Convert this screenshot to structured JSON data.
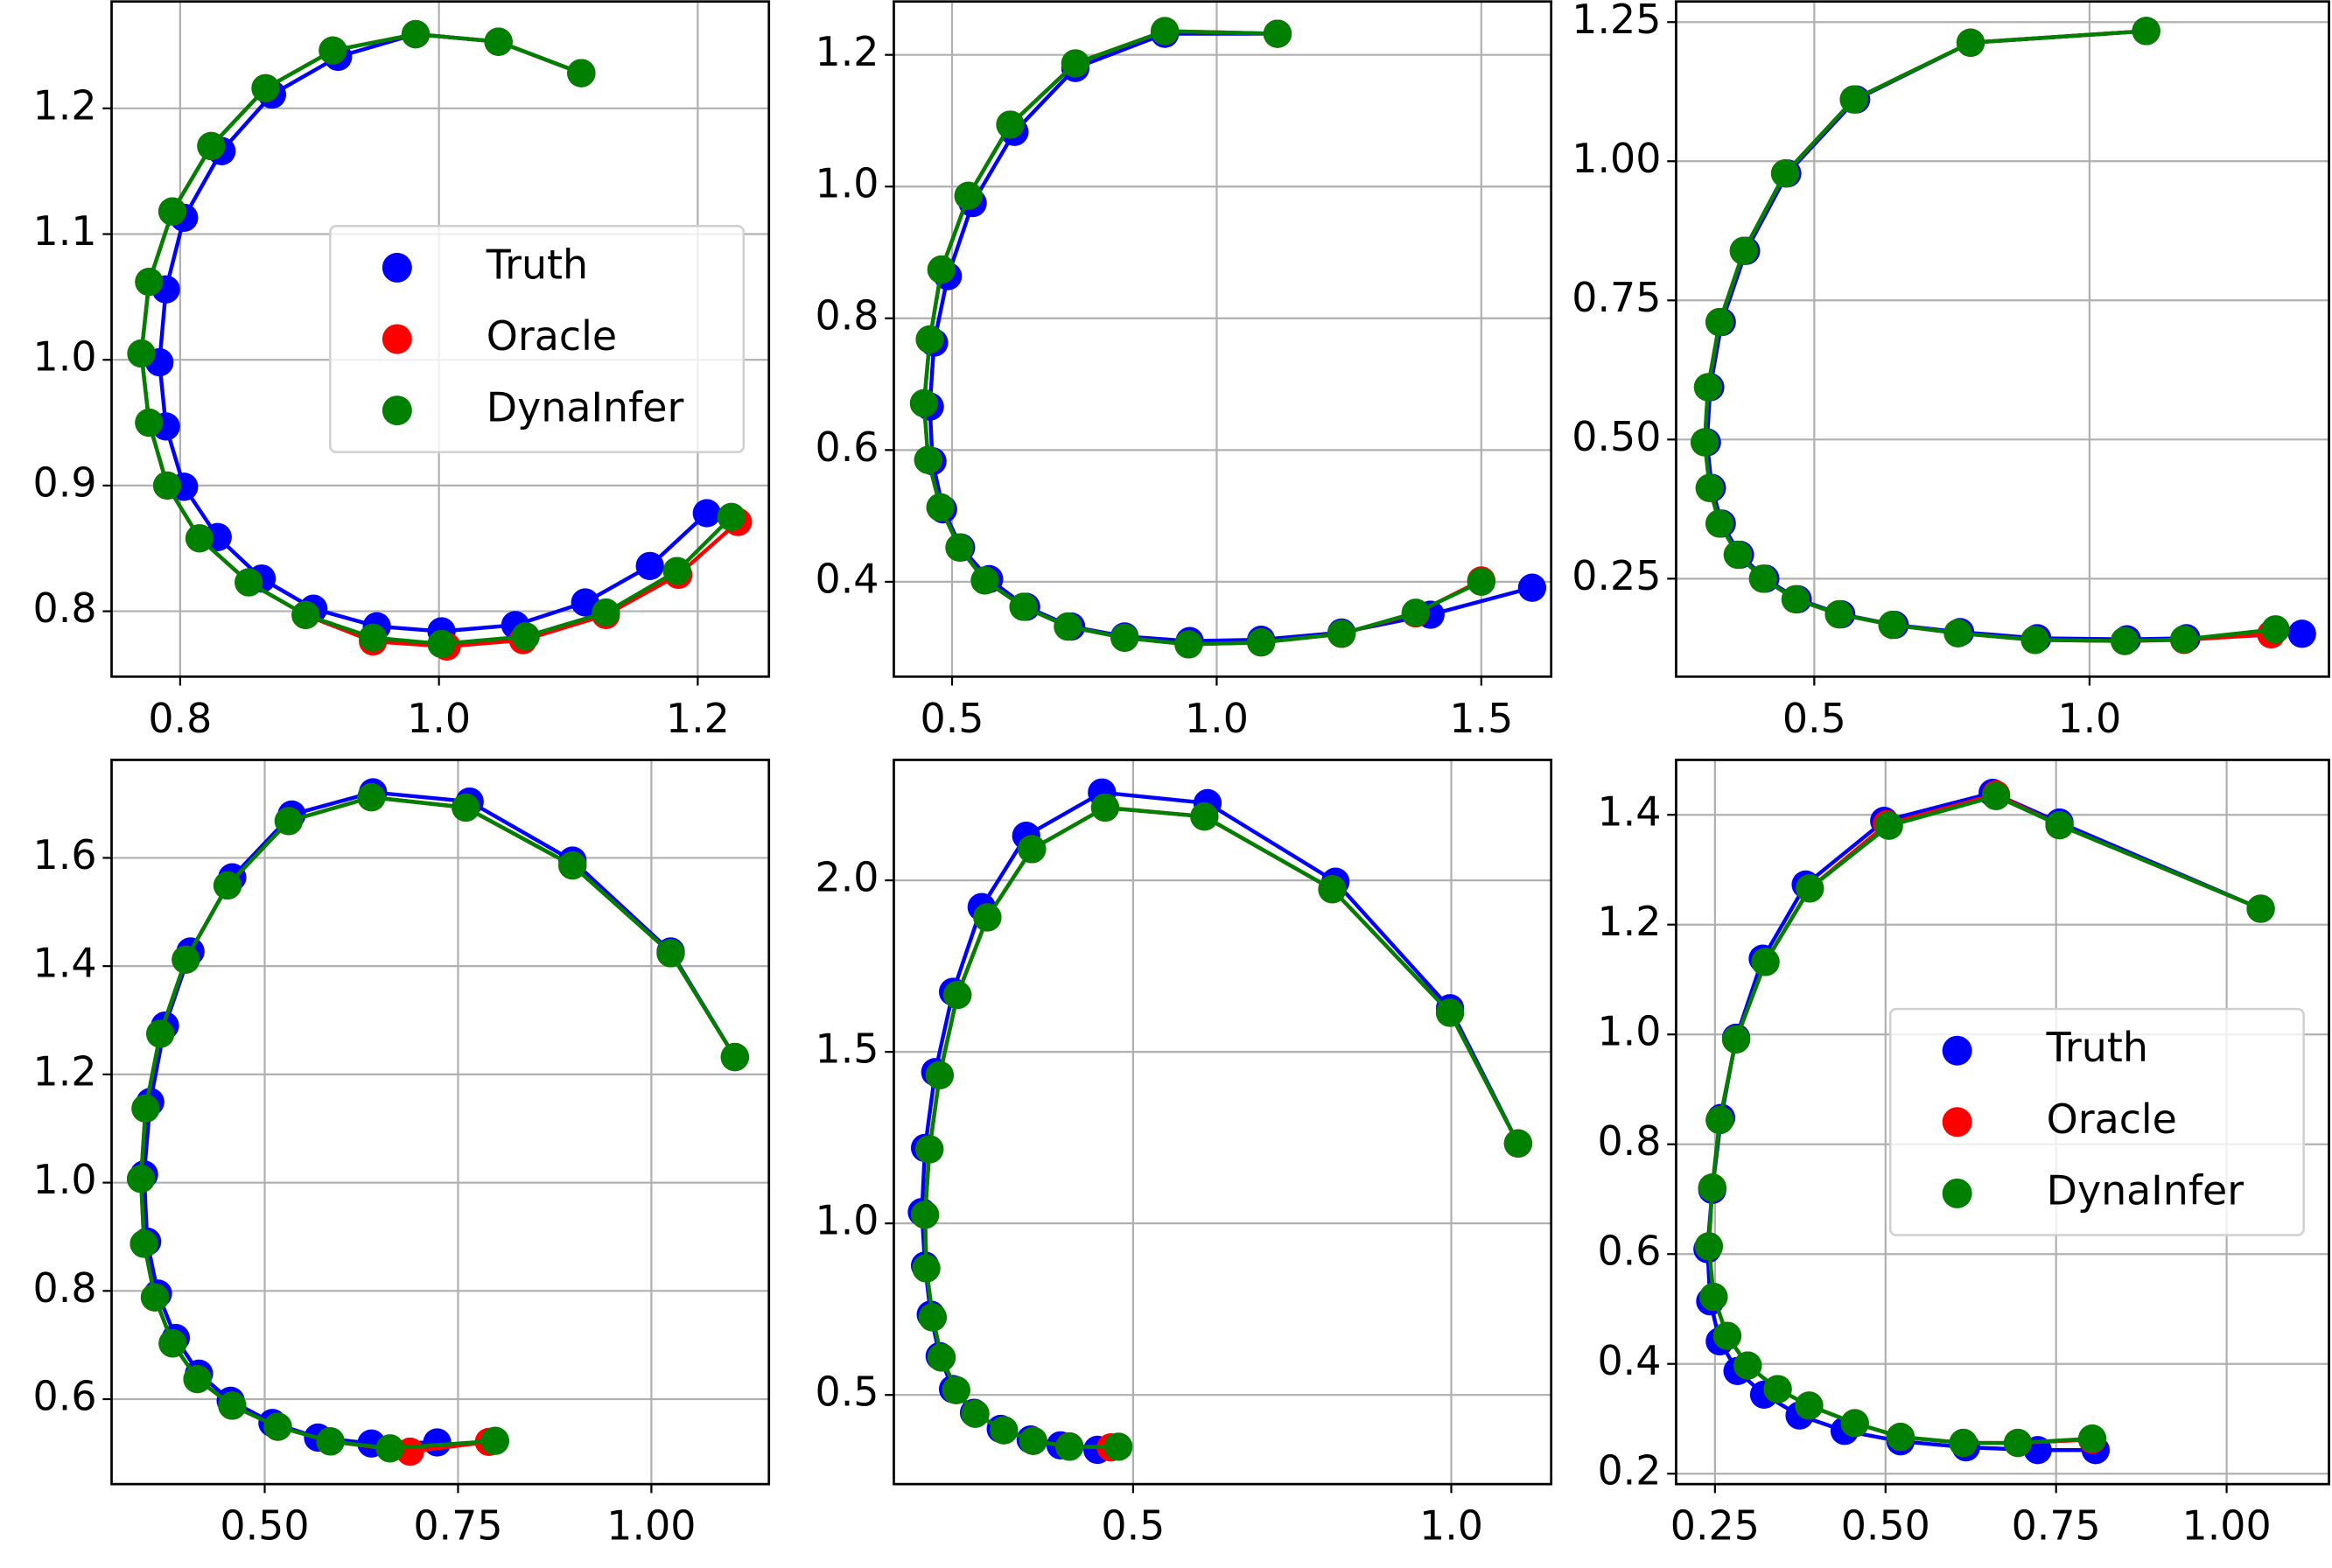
{
  "chart_data": [
    {
      "type": "scatter",
      "grid": true,
      "legend": "center right",
      "xlim": [
        0.747,
        1.255
      ],
      "ylim": [
        0.748,
        1.285
      ],
      "xticks": [
        0.8,
        {
          "value": 1.0,
          "label": "1.0"
        },
        1.2
      ],
      "yticks": [
        0.8,
        0.9,
        {
          "value": 1.0,
          "label": "1.0"
        },
        1.1,
        1.2
      ],
      "series": [
        {
          "name": "Truth",
          "color": "#0000ff",
          "x": [
            1.11,
            1.046,
            0.982,
            0.922,
            0.871,
            0.832,
            0.803,
            0.789,
            0.784,
            0.789,
            0.803,
            0.829,
            0.863,
            0.903,
            0.952,
            1.002,
            1.059,
            1.113,
            1.163,
            1.207
          ],
          "y": [
            1.228,
            1.253,
            1.259,
            1.241,
            1.211,
            1.166,
            1.113,
            1.056,
            0.998,
            0.947,
            0.899,
            0.859,
            0.826,
            0.802,
            0.788,
            0.784,
            0.789,
            0.807,
            0.836,
            0.878
          ]
        },
        {
          "name": "Oracle",
          "color": "#ff0000",
          "x": [
            1.11,
            1.046,
            0.982,
            0.918,
            0.866,
            0.824,
            0.794,
            0.776,
            0.77,
            0.776,
            0.79,
            0.815,
            0.853,
            0.897,
            0.949,
            1.006,
            1.065,
            1.129,
            1.185,
            1.231
          ],
          "y": [
            1.228,
            1.253,
            1.259,
            1.246,
            1.216,
            1.17,
            1.118,
            1.062,
            1.005,
            0.95,
            0.9,
            0.858,
            0.823,
            0.797,
            0.776,
            0.772,
            0.777,
            0.797,
            0.829,
            0.871
          ]
        },
        {
          "name": "DynaInfer",
          "color": "#008000",
          "x": [
            1.11,
            1.046,
            0.982,
            0.918,
            0.866,
            0.824,
            0.794,
            0.776,
            0.77,
            0.776,
            0.79,
            0.815,
            0.853,
            0.897,
            0.949,
            1.002,
            1.067,
            1.129,
            1.184,
            1.226
          ],
          "y": [
            1.228,
            1.253,
            1.259,
            1.246,
            1.216,
            1.17,
            1.118,
            1.062,
            1.005,
            0.95,
            0.9,
            0.858,
            0.823,
            0.797,
            0.779,
            0.774,
            0.78,
            0.799,
            0.832,
            0.875
          ]
        }
      ]
    },
    {
      "type": "scatter",
      "grid": true,
      "xlim": [
        0.39,
        1.632
      ],
      "ylim": [
        0.256,
        1.281
      ],
      "xticks": [
        0.5,
        {
          "value": 1.0,
          "label": "1.0"
        },
        1.5
      ],
      "yticks": [
        0.4,
        0.6,
        0.8,
        {
          "value": 1.0,
          "label": "1.0"
        },
        1.2
      ],
      "series": [
        {
          "color": "#0000ff",
          "x": [
            1.115,
            0.902,
            0.733,
            0.618,
            0.539,
            0.492,
            0.466,
            0.458,
            0.463,
            0.483,
            0.517,
            0.57,
            0.64,
            0.725,
            0.826,
            0.949,
            1.084,
            1.236,
            1.404,
            1.596
          ],
          "y": [
            1.232,
            1.232,
            1.18,
            1.083,
            0.975,
            0.864,
            0.763,
            0.666,
            0.583,
            0.51,
            0.452,
            0.404,
            0.362,
            0.332,
            0.317,
            0.31,
            0.312,
            0.323,
            0.35,
            0.391
          ]
        },
        {
          "color": "#ff0000",
          "x": [
            1.115,
            0.902,
            0.733,
            0.61,
            0.531,
            0.48,
            0.458,
            0.447,
            0.455,
            0.478,
            0.514,
            0.562,
            0.635,
            0.719,
            0.826,
            0.947,
            1.084,
            1.236,
            1.376,
            1.5
          ],
          "y": [
            1.232,
            1.236,
            1.187,
            1.094,
            0.986,
            0.874,
            0.768,
            0.671,
            0.585,
            0.513,
            0.452,
            0.402,
            0.362,
            0.332,
            0.315,
            0.305,
            0.308,
            0.321,
            0.352,
            0.402
          ]
        },
        {
          "color": "#008000",
          "x": [
            1.115,
            0.902,
            0.733,
            0.61,
            0.531,
            0.48,
            0.458,
            0.447,
            0.455,
            0.478,
            0.514,
            0.562,
            0.635,
            0.719,
            0.826,
            0.947,
            1.084,
            1.236,
            1.376,
            1.5
          ],
          "y": [
            1.232,
            1.236,
            1.187,
            1.094,
            0.986,
            0.874,
            0.768,
            0.671,
            0.585,
            0.513,
            0.452,
            0.402,
            0.362,
            0.332,
            0.315,
            0.305,
            0.308,
            0.321,
            0.353,
            0.4
          ]
        }
      ]
    },
    {
      "type": "scatter",
      "grid": true,
      "xlim": [
        0.249,
        1.435
      ],
      "ylim": [
        0.074,
        1.287
      ],
      "xticks": [
        {
          "value": 0.5,
          "label": "0.5"
        },
        {
          "value": 1.0,
          "label": "1.0"
        }
      ],
      "yticks": [
        0.25,
        {
          "value": 0.5,
          "label": "0.50"
        },
        0.75,
        {
          "value": 1.0,
          "label": "1.00"
        },
        1.25
      ],
      "series": [
        {
          "color": "#0000ff",
          "x": [
            1.103,
            0.784,
            0.576,
            0.451,
            0.376,
            0.332,
            0.311,
            0.305,
            0.314,
            0.332,
            0.365,
            0.411,
            0.47,
            0.549,
            0.646,
            0.765,
            0.905,
            1.068,
            1.176,
            1.386
          ],
          "y": [
            1.234,
            1.213,
            1.111,
            0.978,
            0.839,
            0.711,
            0.594,
            0.495,
            0.413,
            0.349,
            0.293,
            0.25,
            0.213,
            0.186,
            0.167,
            0.154,
            0.143,
            0.141,
            0.143,
            0.151
          ]
        },
        {
          "color": "#ff0000",
          "x": [
            1.103,
            0.784,
            0.572,
            0.447,
            0.372,
            0.328,
            0.307,
            0.301,
            0.31,
            0.328,
            0.361,
            0.407,
            0.466,
            0.545,
            0.642,
            0.761,
            0.901,
            1.064,
            1.172,
            1.33
          ],
          "y": [
            1.234,
            1.213,
            1.111,
            0.978,
            0.839,
            0.711,
            0.594,
            0.495,
            0.413,
            0.349,
            0.293,
            0.25,
            0.213,
            0.186,
            0.167,
            0.152,
            0.14,
            0.138,
            0.14,
            0.15
          ]
        },
        {
          "color": "#008000",
          "x": [
            1.103,
            0.784,
            0.572,
            0.447,
            0.372,
            0.328,
            0.307,
            0.301,
            0.31,
            0.328,
            0.361,
            0.407,
            0.466,
            0.545,
            0.642,
            0.761,
            0.901,
            1.064,
            1.172,
            1.338
          ],
          "y": [
            1.234,
            1.213,
            1.111,
            0.978,
            0.839,
            0.711,
            0.594,
            0.495,
            0.413,
            0.349,
            0.293,
            0.25,
            0.213,
            0.186,
            0.167,
            0.152,
            0.14,
            0.138,
            0.141,
            0.159
          ]
        }
      ]
    },
    {
      "type": "scatter",
      "grid": true,
      "xlim": [
        0.302,
        1.152
      ],
      "ylim": [
        0.443,
        1.781
      ],
      "xticks": [
        {
          "value": 0.5,
          "label": "0.50"
        },
        0.75,
        {
          "value": 1.0,
          "label": "1.00"
        }
      ],
      "yticks": [
        0.6,
        0.8,
        {
          "value": 1.0,
          "label": "1.0"
        },
        1.2,
        1.4,
        1.6
      ],
      "series": [
        {
          "color": "#0000ff",
          "x": [
            1.108,
            1.025,
            0.898,
            0.765,
            0.64,
            0.535,
            0.458,
            0.404,
            0.371,
            0.352,
            0.344,
            0.348,
            0.362,
            0.385,
            0.415,
            0.456,
            0.51,
            0.569,
            0.638,
            0.723
          ],
          "y": [
            1.232,
            1.427,
            1.595,
            1.704,
            1.721,
            1.68,
            1.564,
            1.427,
            1.29,
            1.149,
            1.015,
            0.891,
            0.795,
            0.713,
            0.647,
            0.597,
            0.556,
            0.529,
            0.518,
            0.52
          ]
        },
        {
          "color": "#ff0000",
          "x": [
            1.108,
            1.025,
            0.898,
            0.76,
            0.638,
            0.531,
            0.452,
            0.398,
            0.365,
            0.346,
            0.34,
            0.344,
            0.358,
            0.381,
            0.413,
            0.458,
            0.517,
            0.585,
            0.688,
            0.79
          ],
          "y": [
            1.232,
            1.424,
            1.586,
            1.693,
            1.712,
            1.668,
            1.549,
            1.412,
            1.275,
            1.137,
            1.007,
            0.887,
            0.788,
            0.703,
            0.637,
            0.588,
            0.549,
            0.522,
            0.503,
            0.521
          ]
        },
        {
          "color": "#008000",
          "x": [
            1.108,
            1.025,
            0.898,
            0.76,
            0.638,
            0.531,
            0.452,
            0.398,
            0.365,
            0.346,
            0.34,
            0.344,
            0.358,
            0.381,
            0.413,
            0.458,
            0.517,
            0.585,
            0.662,
            0.798
          ],
          "y": [
            1.232,
            1.424,
            1.586,
            1.693,
            1.712,
            1.668,
            1.549,
            1.412,
            1.275,
            1.137,
            1.007,
            0.887,
            0.788,
            0.703,
            0.637,
            0.588,
            0.549,
            0.522,
            0.509,
            0.523
          ]
        }
      ]
    },
    {
      "type": "scatter",
      "grid": true,
      "xlim": [
        0.124,
        1.157
      ],
      "ylim": [
        0.24,
        2.351
      ],
      "xticks": [
        0.5,
        {
          "value": 1.0,
          "label": "1.0"
        }
      ],
      "yticks": [
        0.5,
        {
          "value": 1.0,
          "label": "1.0"
        },
        1.5,
        {
          "value": 2.0,
          "label": "2.0"
        }
      ],
      "series": [
        {
          "color": "#0000ff",
          "x": [
            1.105,
            0.998,
            0.818,
            0.617,
            0.451,
            0.332,
            0.262,
            0.217,
            0.189,
            0.173,
            0.168,
            0.173,
            0.182,
            0.196,
            0.217,
            0.25,
            0.292,
            0.339,
            0.386,
            0.444
          ],
          "y": [
            1.233,
            1.627,
            1.996,
            2.225,
            2.256,
            2.13,
            1.922,
            1.675,
            1.441,
            1.22,
            1.033,
            0.877,
            0.734,
            0.613,
            0.517,
            0.448,
            0.401,
            0.37,
            0.353,
            0.34
          ]
        },
        {
          "color": "#ff0000",
          "x": [
            1.105,
            0.998,
            0.813,
            0.612,
            0.456,
            0.341,
            0.271,
            0.224,
            0.196,
            0.18,
            0.173,
            0.175,
            0.185,
            0.199,
            0.222,
            0.252,
            0.297,
            0.343,
            0.4,
            0.465
          ],
          "y": [
            1.233,
            1.614,
            1.974,
            2.186,
            2.212,
            2.091,
            1.892,
            1.666,
            1.432,
            1.216,
            1.025,
            0.869,
            0.726,
            0.609,
            0.514,
            0.445,
            0.397,
            0.366,
            0.35,
            0.347
          ]
        },
        {
          "color": "#008000",
          "x": [
            1.105,
            0.998,
            0.813,
            0.612,
            0.456,
            0.341,
            0.271,
            0.224,
            0.196,
            0.18,
            0.173,
            0.175,
            0.185,
            0.199,
            0.222,
            0.252,
            0.297,
            0.343,
            0.4,
            0.477
          ],
          "y": [
            1.233,
            1.614,
            1.974,
            2.186,
            2.212,
            2.091,
            1.892,
            1.666,
            1.432,
            1.216,
            1.025,
            0.869,
            0.726,
            0.609,
            0.514,
            0.445,
            0.397,
            0.366,
            0.349,
            0.349
          ]
        }
      ]
    },
    {
      "type": "scatter",
      "grid": true,
      "legend": "center right",
      "xlim": [
        0.193,
        1.15
      ],
      "ylim": [
        0.181,
        1.5
      ],
      "xticks": [
        0.25,
        {
          "value": 0.5,
          "label": "0.50"
        },
        0.75,
        {
          "value": 1.0,
          "label": "1.00"
        }
      ],
      "yticks": [
        0.2,
        0.4,
        0.6,
        0.8,
        {
          "value": 1.0,
          "label": "1.0"
        },
        1.2,
        1.4
      ],
      "series": [
        {
          "name": "Truth",
          "color": "#0000ff",
          "x": [
            1.05,
            0.755,
            0.657,
            0.498,
            0.383,
            0.32,
            0.281,
            0.259,
            0.246,
            0.239,
            0.243,
            0.257,
            0.283,
            0.322,
            0.374,
            0.44,
            0.522,
            0.618,
            0.723,
            0.808
          ],
          "y": [
            1.229,
            1.386,
            1.44,
            1.389,
            1.273,
            1.138,
            0.994,
            0.848,
            0.717,
            0.609,
            0.514,
            0.441,
            0.387,
            0.344,
            0.306,
            0.278,
            0.259,
            0.248,
            0.243,
            0.243
          ]
        },
        {
          "name": "Oracle",
          "color": "#ff0000",
          "x": [
            1.05,
            0.755,
            0.662,
            0.502,
            0.389,
            0.324,
            0.281,
            0.257,
            0.246,
            0.241,
            0.248,
            0.268,
            0.298,
            0.342,
            0.388,
            0.455,
            0.522,
            0.614,
            0.694,
            0.803
          ],
          "y": [
            1.229,
            1.381,
            1.437,
            1.383,
            1.266,
            1.132,
            0.991,
            0.844,
            0.721,
            0.614,
            0.522,
            0.451,
            0.397,
            0.354,
            0.324,
            0.292,
            0.267,
            0.256,
            0.256,
            0.262
          ]
        },
        {
          "name": "DynaInfer",
          "color": "#008000",
          "x": [
            1.05,
            0.755,
            0.662,
            0.505,
            0.389,
            0.324,
            0.281,
            0.257,
            0.246,
            0.241,
            0.248,
            0.268,
            0.298,
            0.342,
            0.388,
            0.455,
            0.522,
            0.614,
            0.694,
            0.803
          ],
          "y": [
            1.229,
            1.381,
            1.434,
            1.38,
            1.266,
            1.132,
            0.991,
            0.844,
            0.721,
            0.614,
            0.522,
            0.451,
            0.397,
            0.354,
            0.324,
            0.292,
            0.267,
            0.256,
            0.256,
            0.264
          ]
        }
      ]
    }
  ]
}
